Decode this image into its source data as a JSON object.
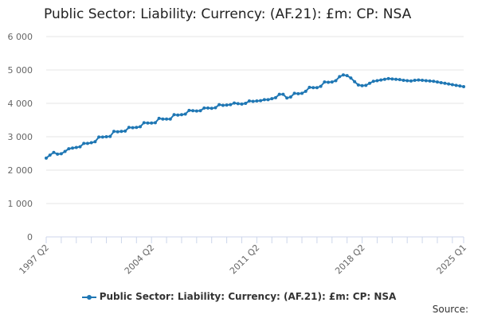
{
  "chart_data": {
    "type": "line",
    "title": "Public Sector: Liability: Currency: (AF.21): £m: CP: NSA",
    "xlabel": "",
    "ylabel": "",
    "ylim": [
      0,
      6000
    ],
    "yticks": [
      0,
      1000,
      2000,
      3000,
      4000,
      5000,
      6000
    ],
    "ytick_labels": [
      "0",
      "1 000",
      "2 000",
      "3 000",
      "4 000",
      "5 000",
      "6 000"
    ],
    "xtick_labels": [
      "1997 Q2",
      "2004 Q2",
      "2011 Q2",
      "2018 Q2",
      "2025 Q1"
    ],
    "xtick_positions": [
      0,
      28,
      56,
      84,
      111
    ],
    "x_start": "1997 Q2",
    "grid": true,
    "legend_position": "bottom",
    "series": [
      {
        "name": "Public Sector: Liability: Currency: (AF.21): £m: CP: NSA",
        "color": "#1f77b4",
        "values": [
          2360,
          2450,
          2530,
          2480,
          2490,
          2560,
          2640,
          2660,
          2680,
          2700,
          2800,
          2800,
          2820,
          2850,
          2990,
          2990,
          3000,
          3010,
          3160,
          3150,
          3160,
          3170,
          3280,
          3270,
          3280,
          3300,
          3420,
          3410,
          3410,
          3420,
          3550,
          3530,
          3530,
          3530,
          3660,
          3650,
          3660,
          3680,
          3790,
          3780,
          3770,
          3780,
          3860,
          3860,
          3850,
          3870,
          3960,
          3940,
          3950,
          3960,
          4010,
          3990,
          3980,
          4000,
          4070,
          4060,
          4070,
          4080,
          4110,
          4110,
          4140,
          4170,
          4270,
          4270,
          4160,
          4190,
          4300,
          4290,
          4300,
          4360,
          4480,
          4470,
          4470,
          4510,
          4640,
          4630,
          4640,
          4680,
          4800,
          4850,
          4830,
          4760,
          4650,
          4550,
          4530,
          4540,
          4600,
          4660,
          4680,
          4700,
          4720,
          4740,
          4730,
          4720,
          4710,
          4690,
          4680,
          4670,
          4690,
          4700,
          4690,
          4680,
          4670,
          4660,
          4640,
          4620,
          4600,
          4580,
          4560,
          4540,
          4520,
          4500
        ]
      }
    ]
  },
  "legend": {
    "label": "Public Sector: Liability: Currency: (AF.21): £m: CP: NSA"
  },
  "footer": {
    "source_label": "Source:"
  }
}
